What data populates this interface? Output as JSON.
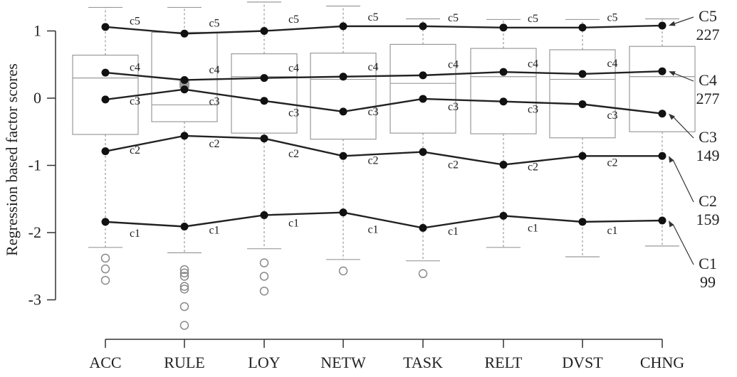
{
  "chart_data": {
    "type": "box",
    "ylabel": "Regression based factor scores",
    "xlabel": "",
    "ylim": [
      -3.6,
      1.45
    ],
    "yticks": [
      1,
      0,
      -1,
      -2,
      -3
    ],
    "categories": [
      "ACC",
      "RULE",
      "LOY",
      "NETW",
      "TASK",
      "RELT",
      "DVST",
      "CHNG"
    ],
    "boxes": [
      {
        "category": "ACC",
        "whisker_low": -2.22,
        "q1": -0.54,
        "median": 0.3,
        "q3": 0.64,
        "whisker_high": 1.35,
        "outliers": [
          -2.38,
          -2.54,
          -2.71
        ]
      },
      {
        "category": "RULE",
        "whisker_low": -2.3,
        "q1": -0.35,
        "median": -0.1,
        "q3": 0.98,
        "whisker_high": 1.35,
        "outliers": [
          -2.55,
          -2.6,
          -2.65,
          -2.8,
          -2.84,
          -3.1,
          -3.38
        ]
      },
      {
        "category": "LOY",
        "whisker_low": -2.24,
        "q1": -0.52,
        "median": 0.32,
        "q3": 0.66,
        "whisker_high": 1.43,
        "outliers": [
          -2.45,
          -2.65,
          -2.87
        ]
      },
      {
        "category": "NETW",
        "whisker_low": -2.4,
        "q1": -0.61,
        "median": 0.28,
        "q3": 0.67,
        "whisker_high": 1.37,
        "outliers": [
          -2.57
        ]
      },
      {
        "category": "TASK",
        "whisker_low": -2.42,
        "q1": -0.52,
        "median": 0.22,
        "q3": 0.8,
        "whisker_high": 1.18,
        "outliers": [
          -2.61
        ]
      },
      {
        "category": "RELT",
        "whisker_low": -2.22,
        "q1": -0.53,
        "median": 0.32,
        "q3": 0.74,
        "whisker_high": 1.17,
        "outliers": []
      },
      {
        "category": "DVST",
        "whisker_low": -2.36,
        "q1": -0.59,
        "median": 0.28,
        "q3": 0.72,
        "whisker_high": 1.17,
        "outliers": []
      },
      {
        "category": "CHNG",
        "whisker_low": -2.2,
        "q1": -0.5,
        "median": 0.32,
        "q3": 0.77,
        "whisker_high": 1.18,
        "outliers": []
      }
    ],
    "series": [
      {
        "name": "C5",
        "label": "c5",
        "count": "227",
        "values": [
          1.06,
          0.96,
          1.0,
          1.07,
          1.07,
          1.05,
          1.05,
          1.08
        ]
      },
      {
        "name": "C4",
        "label": "c4",
        "count": "277",
        "values": [
          0.38,
          0.27,
          0.3,
          0.32,
          0.34,
          0.39,
          0.36,
          0.4
        ]
      },
      {
        "name": "C3",
        "label": "c3",
        "count": "149",
        "values": [
          -0.02,
          0.13,
          -0.04,
          -0.2,
          -0.01,
          -0.05,
          -0.09,
          -0.23
        ]
      },
      {
        "name": "C2",
        "label": "c2",
        "count": "159",
        "values": [
          -0.79,
          -0.56,
          -0.6,
          -0.86,
          -0.8,
          -0.99,
          -0.86,
          -0.86
        ]
      },
      {
        "name": "C1",
        "label": "c1",
        "count": "99",
        "values": [
          -1.84,
          -1.91,
          -1.74,
          -1.7,
          -1.93,
          -1.75,
          -1.84,
          -1.82
        ]
      }
    ],
    "grid": false
  }
}
